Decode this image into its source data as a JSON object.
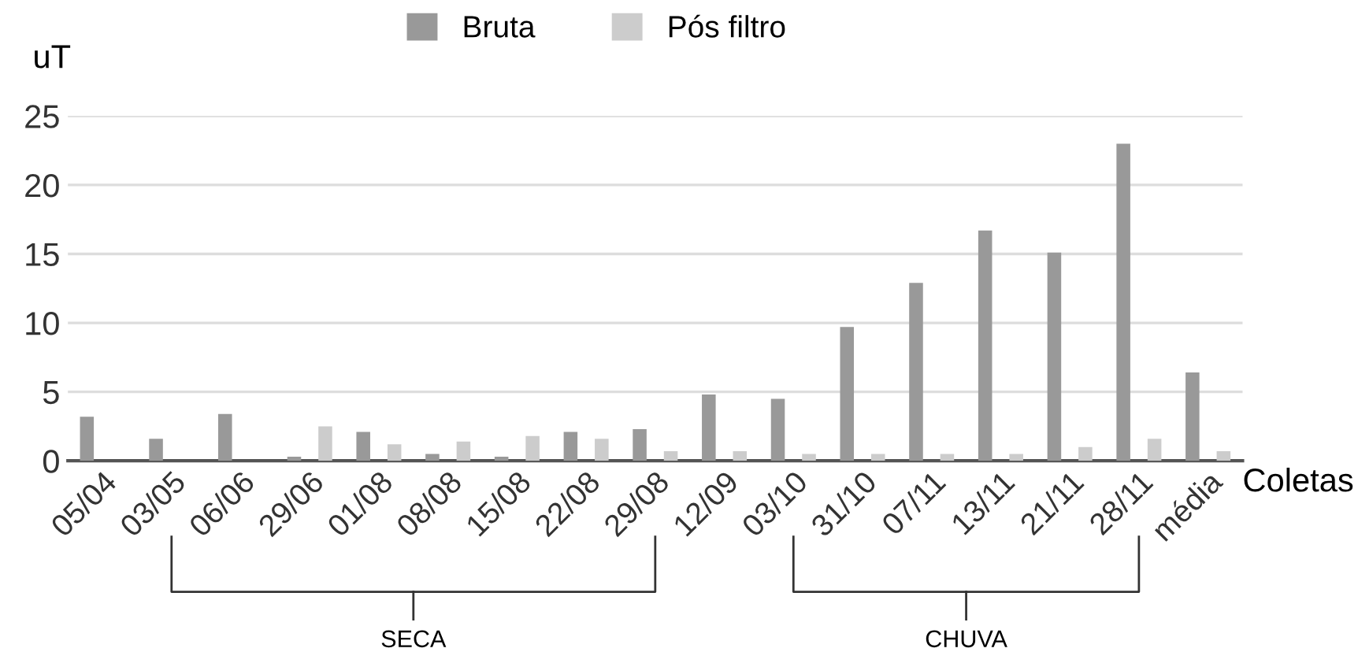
{
  "chart_data": {
    "type": "bar",
    "ylabel": "uT",
    "xlabel": "Coletas",
    "categories": [
      "05/04",
      "03/05",
      "06/06",
      "29/06",
      "01/08",
      "08/08",
      "15/08",
      "22/08",
      "29/08",
      "12/09",
      "03/10",
      "31/10",
      "07/11",
      "13/11",
      "21/11",
      "28/11",
      "média"
    ],
    "series": [
      {
        "name": "Bruta",
        "color": "#999999",
        "values": [
          3.2,
          1.6,
          3.4,
          0.3,
          2.1,
          0.5,
          0.3,
          2.1,
          2.3,
          4.8,
          4.5,
          9.7,
          12.9,
          16.7,
          15.1,
          23.0,
          6.4
        ]
      },
      {
        "name": "Pós filtro",
        "color": "#cccccc",
        "values": [
          0,
          0,
          0,
          2.5,
          1.2,
          1.4,
          1.8,
          1.6,
          0.7,
          0.7,
          0.5,
          0.5,
          0.5,
          0.5,
          1.0,
          1.6,
          0.7
        ]
      }
    ],
    "ylim": [
      0,
      25
    ],
    "yticks": [
      0,
      5,
      10,
      15,
      20,
      25
    ],
    "grid": "y",
    "legend": "top",
    "annotations": [
      "SECA",
      "CHUVA"
    ]
  }
}
